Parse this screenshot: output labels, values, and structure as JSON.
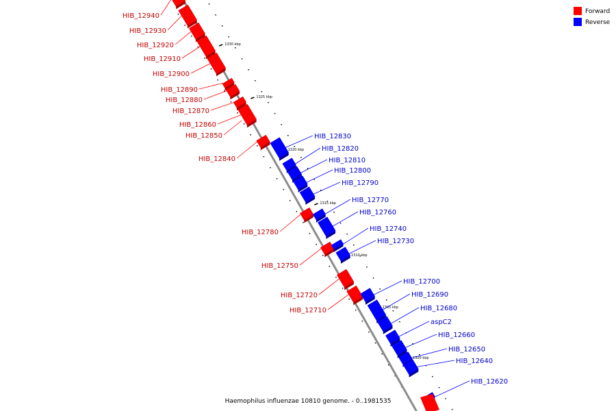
{
  "caption": "Haemophilus influenzae 10810 genome. - 0..1981535",
  "legend": [
    {
      "label": "Forward",
      "color": "#ff0000"
    },
    {
      "label": "Reverse",
      "color": "#0000ff"
    }
  ],
  "colors": {
    "forward": "#ff0000",
    "reverse": "#0000ff",
    "backbone": "#808080"
  },
  "ticks": [
    "1330 kbp",
    "1325 kbp",
    "1320 kbp",
    "1315 kbp",
    "1310 kbp",
    "1305 kbp",
    "1300 kbp"
  ],
  "forward_genes": [
    "HIB_12940",
    "HIB_12930",
    "HIB_12920",
    "HIB_12910",
    "HIB_12900",
    "HIB_12890",
    "HIB_12880",
    "HIB_12870",
    "HIB_12860",
    "HIB_12850",
    "HIB_12840",
    "HIB_12780",
    "HIB_12750",
    "HIB_12720",
    "HIB_12710"
  ],
  "reverse_genes": [
    "HIB_12830",
    "HIB_12820",
    "HIB_12810",
    "HIB_12800",
    "HIB_12790",
    "HIB_12770",
    "HIB_12760",
    "HIB_12740",
    "HIB_12730",
    "HIB_12700",
    "HIB_12690",
    "HIB_12680",
    "aspC2",
    "HIB_12660",
    "HIB_12650",
    "HIB_12640",
    "HIB_12620"
  ]
}
